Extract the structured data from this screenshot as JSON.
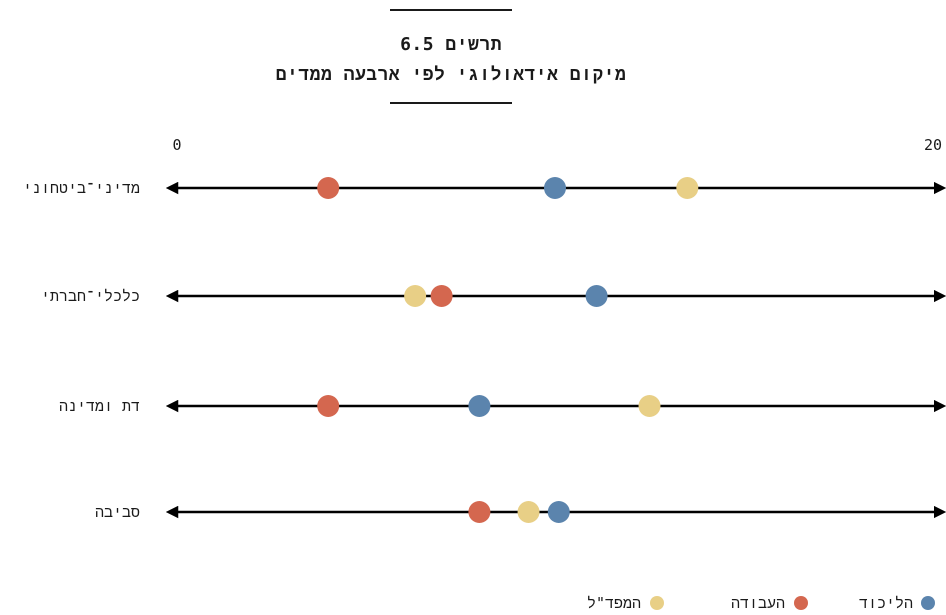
{
  "chart_data": {
    "type": "scatter",
    "title_line1": "תרשים 6.5",
    "title_line2": "מיקום אידאולוגי לפי ארבעה ממדים",
    "xlim": [
      0,
      20
    ],
    "x_tick_labels": [
      "0",
      "20"
    ],
    "categories": [
      "מדיני־ביטחוני",
      "כלכלי־חברתי",
      "דת ומדינה",
      "סביבה"
    ],
    "series": [
      {
        "name": "הליכוד",
        "color": "#5b84ad",
        "values": [
          10,
          11.1,
          8,
          10.1
        ]
      },
      {
        "name": "העבודה",
        "color": "#d4674f",
        "values": [
          4,
          7,
          4,
          8
        ]
      },
      {
        "name": "המפד\"ל",
        "color": "#e8cf86",
        "values": [
          13.5,
          6.3,
          12.5,
          9.3
        ]
      }
    ],
    "legend_position": "bottom-right",
    "grid": false
  }
}
